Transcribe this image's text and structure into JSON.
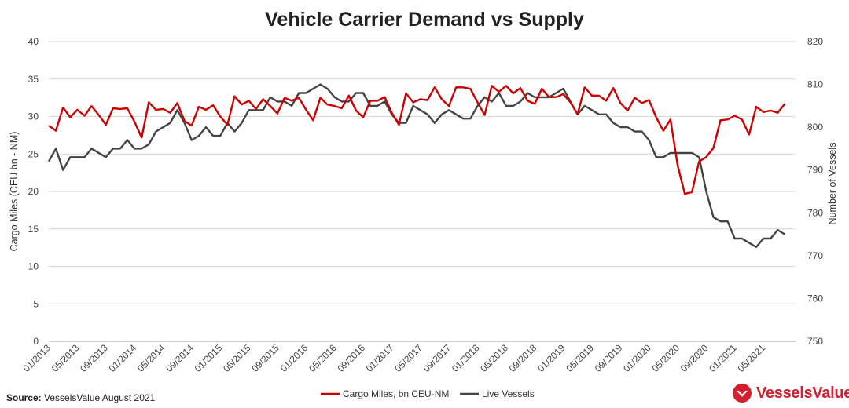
{
  "chart_data": {
    "type": "line",
    "title": "Vehicle Carrier Demand vs Supply",
    "ylabel": "Cargo Miles (CEU bn - NM)",
    "y2label": "Number of Vessels",
    "ylim": [
      0,
      40
    ],
    "y2lim": [
      750,
      820
    ],
    "yticks": [
      "0",
      "5",
      "10",
      "15",
      "20",
      "25",
      "30",
      "35",
      "40"
    ],
    "y2ticks": [
      "750",
      "760",
      "770",
      "780",
      "790",
      "800",
      "810",
      "820"
    ],
    "x_start": "2013-01",
    "xticks": [
      "01/2013",
      "05/2013",
      "09/2013",
      "01/2014",
      "05/2014",
      "09/2014",
      "01/2015",
      "05/2015",
      "09/2015",
      "01/2016",
      "05/2016",
      "09/2016",
      "01/2017",
      "05/2017",
      "09/2017",
      "01/2018",
      "05/2018",
      "09/2018",
      "01/2019",
      "05/2019",
      "09/2019",
      "01/2020",
      "05/2020",
      "09/2020",
      "01/2021",
      "05/2021"
    ],
    "grid": "horizontal",
    "legend": "bottom",
    "series": [
      {
        "name": "Cargo Miles, bn CEU-NM",
        "axis": "left",
        "color": "#cc0000",
        "values": [
          28.8,
          28.1,
          31.2,
          29.9,
          30.9,
          30.1,
          31.4,
          30.2,
          28.9,
          31.1,
          31.0,
          31.1,
          29.3,
          27.2,
          31.9,
          30.9,
          31.0,
          30.5,
          31.8,
          29.4,
          28.8,
          31.3,
          30.9,
          31.5,
          30.0,
          28.9,
          32.7,
          31.6,
          32.1,
          31.0,
          32.3,
          31.4,
          30.4,
          32.5,
          32.1,
          32.5,
          30.9,
          29.5,
          32.5,
          31.6,
          31.4,
          31.1,
          32.8,
          30.8,
          29.9,
          32.1,
          32.1,
          32.6,
          30.5,
          28.9,
          33.1,
          31.9,
          32.3,
          32.2,
          33.9,
          32.3,
          31.4,
          33.9,
          33.9,
          33.7,
          31.9,
          30.2,
          34.1,
          33.3,
          34.1,
          33.1,
          33.8,
          32.1,
          31.7,
          33.7,
          32.6,
          32.6,
          33.0,
          31.9,
          30.3,
          33.9,
          32.8,
          32.8,
          32.1,
          33.8,
          31.8,
          30.8,
          32.5,
          31.8,
          32.2,
          29.9,
          28.1,
          29.6,
          23.5,
          19.7,
          19.9,
          24.0,
          24.6,
          25.8,
          29.5,
          29.6,
          30.1,
          29.6,
          27.6,
          31.3,
          30.6,
          30.8,
          30.5,
          31.7
        ]
      },
      {
        "name": "Live Vessels",
        "axis": "right",
        "color": "#444444",
        "values": [
          792,
          795,
          790,
          793,
          793,
          793,
          795,
          794,
          793,
          795,
          795,
          797,
          795,
          795,
          796,
          799,
          800,
          801,
          804,
          801,
          797,
          798,
          800,
          798,
          798,
          801,
          799,
          801,
          804,
          804,
          804,
          807,
          806,
          806,
          805,
          808,
          808,
          809,
          810,
          809,
          807,
          806,
          806,
          808,
          808,
          805,
          805,
          806,
          803,
          801,
          801,
          805,
          804,
          803,
          801,
          803,
          804,
          803,
          802,
          802,
          805,
          807,
          806,
          808,
          805,
          805,
          806,
          808,
          807,
          807,
          807,
          808,
          809,
          806,
          803,
          805,
          804,
          803,
          803,
          801,
          800,
          800,
          799,
          799,
          797,
          793,
          793,
          794,
          794,
          794,
          794,
          793,
          785,
          779,
          778,
          778,
          774,
          774,
          773,
          772,
          774,
          774,
          776,
          775
        ]
      }
    ]
  },
  "source": {
    "label": "Source:",
    "text": " VesselsValue August 2021"
  },
  "brand": {
    "name": "VesselsValue",
    "color": "#d2202f"
  }
}
